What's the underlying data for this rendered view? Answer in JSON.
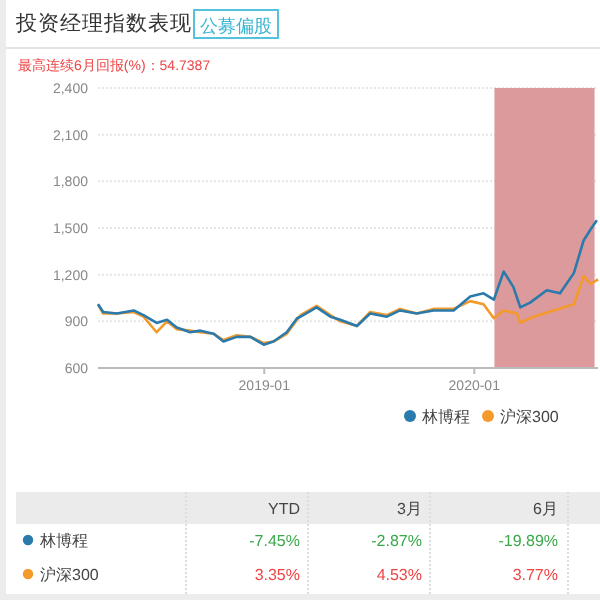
{
  "chart_data": [
    {
      "type": "line",
      "title": "投资经理指数表现",
      "subtitle": "最高连续6月回报(%)：54.7387",
      "annotations": [
        "公募偏股"
      ],
      "xlim": [
        "2018-03-18",
        "2020-08-03"
      ],
      "xticks": [
        {
          "value": "2019-01",
          "label": "2019-01"
        },
        {
          "value": "2020-01",
          "label": "2020-01"
        }
      ],
      "ylim": [
        600,
        2400
      ],
      "yticks": [
        {
          "value": 600,
          "label": "600"
        },
        {
          "value": 900,
          "label": "900"
        },
        {
          "value": 1200,
          "label": "1,200"
        },
        {
          "value": 1500,
          "label": "1,500"
        },
        {
          "value": 1800,
          "label": "1,800"
        },
        {
          "value": 2100,
          "label": "2,100"
        },
        {
          "value": 2400,
          "label": "2,400"
        }
      ],
      "grid": "y",
      "legend": "bottom right",
      "marker": "none",
      "line_style": "solid",
      "bands": [
        {
          "axis": "x",
          "from": "2020-02-05",
          "to": "2020-07-28",
          "color": "#dc9a9c"
        }
      ],
      "series": [
        {
          "name": "林博程",
          "color": "#2a7aac",
          "x": [
            "2018-03-18",
            "2018-03-27",
            "2018-04-20",
            "2018-05-19",
            "2018-06-05",
            "2018-06-28",
            "2018-07-16",
            "2018-08-02",
            "2018-08-25",
            "2018-09-12",
            "2018-10-05",
            "2018-10-22",
            "2018-11-14",
            "2018-12-08",
            "2018-12-31",
            "2019-01-17",
            "2019-02-09",
            "2019-02-27",
            "2019-03-05",
            "2019-04-02",
            "2019-04-26",
            "2019-05-13",
            "2019-06-11",
            "2019-07-04",
            "2019-08-02",
            "2019-08-25",
            "2019-09-23",
            "2019-10-22",
            "2019-11-26",
            "2019-12-25",
            "2020-01-17",
            "2020-02-04",
            "2020-02-21",
            "2020-03-09",
            "2020-03-21",
            "2020-04-07",
            "2020-05-06",
            "2020-05-29",
            "2020-06-22",
            "2020-07-09",
            "2020-07-21",
            "2020-08-01"
          ],
          "values": [
            1010,
            960,
            950,
            970,
            940,
            890,
            910,
            860,
            830,
            840,
            820,
            770,
            800,
            800,
            750,
            770,
            830,
            920,
            930,
            990,
            930,
            910,
            870,
            950,
            930,
            970,
            950,
            970,
            970,
            1060,
            1080,
            1040,
            1220,
            1120,
            990,
            1020,
            1100,
            1080,
            1210,
            1420,
            1490,
            1550
          ]
        },
        {
          "name": "沪深300",
          "color": "#f39a2b",
          "x": [
            "2018-03-18",
            "2018-03-27",
            "2018-04-20",
            "2018-05-19",
            "2018-06-05",
            "2018-06-28",
            "2018-07-16",
            "2018-08-02",
            "2018-08-25",
            "2018-09-12",
            "2018-10-05",
            "2018-10-22",
            "2018-11-14",
            "2018-12-08",
            "2018-12-31",
            "2019-01-17",
            "2019-02-09",
            "2019-02-27",
            "2019-03-05",
            "2019-04-02",
            "2019-04-26",
            "2019-05-13",
            "2019-06-11",
            "2019-07-04",
            "2019-08-02",
            "2019-08-25",
            "2019-09-23",
            "2019-10-22",
            "2019-11-26",
            "2019-12-25",
            "2020-01-17",
            "2020-02-04",
            "2020-02-21",
            "2020-03-15",
            "2020-03-21",
            "2020-04-13",
            "2020-05-18",
            "2020-06-22",
            "2020-07-09",
            "2020-07-21",
            "2020-08-03"
          ],
          "values": [
            1010,
            950,
            950,
            960,
            930,
            830,
            900,
            850,
            840,
            830,
            820,
            780,
            810,
            800,
            760,
            770,
            820,
            910,
            940,
            1000,
            940,
            900,
            870,
            960,
            940,
            980,
            950,
            980,
            980,
            1030,
            1010,
            920,
            970,
            950,
            890,
            930,
            970,
            1010,
            1190,
            1140,
            1170
          ]
        }
      ]
    },
    {
      "type": "other",
      "categories": [
        "YTD",
        "3月",
        "6月"
      ],
      "series": [
        {
          "name": "林博程",
          "color": "#2a7aac",
          "values": [
            -7.45,
            -2.87,
            -19.89
          ],
          "value_labels": [
            "-7.45%",
            "-2.87%",
            "-19.89%"
          ]
        },
        {
          "name": "沪深300",
          "color": "#f39a2b",
          "values": [
            3.35,
            4.53,
            3.77
          ],
          "value_labels": [
            "3.35%",
            "4.53%",
            "3.77%"
          ]
        }
      ]
    }
  ]
}
